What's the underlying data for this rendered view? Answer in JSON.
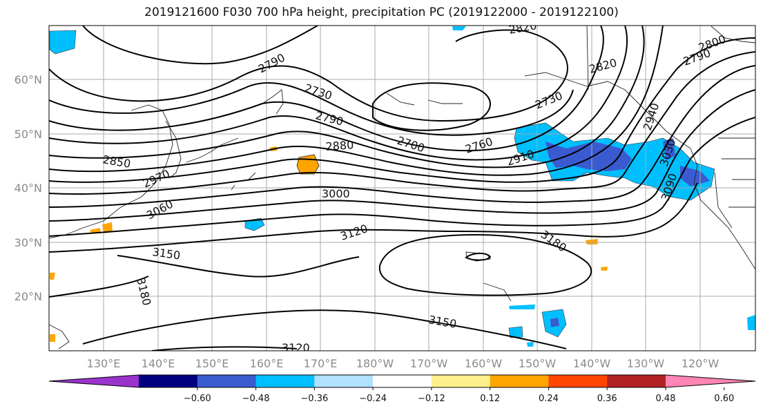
{
  "title": "2019121600 F030 700 hPa height, precipitation PC (2019122000 - 2019122100)",
  "lon_labels": [
    "130°E",
    "140°E",
    "150°E",
    "160°E",
    "170°E",
    "180°W",
    "170°W",
    "160°W",
    "150°W",
    "140°W",
    "130°W",
    "120°W"
  ],
  "lat_labels": [
    "60°N",
    "50°N",
    "40°N",
    "30°N",
    "20°N"
  ],
  "contour_labels": [
    "2820",
    "2790",
    "2730",
    "2820",
    "2730",
    "2790",
    "2700",
    "2760",
    "2910",
    "2880",
    "2850",
    "2970",
    "3000",
    "2940",
    "3030",
    "3090",
    "3060",
    "3120",
    "3180",
    "3150",
    "3180",
    "3150",
    "3120",
    "2800",
    "2790"
  ],
  "colorbar": {
    "ticks": [
      "−0.60",
      "−0.48",
      "−0.36",
      "−0.24",
      "−0.12",
      "0.12",
      "0.24",
      "0.36",
      "0.48",
      "0.60"
    ],
    "colors": [
      "#9a33cc",
      "#000080",
      "#3a5bd0",
      "#00bfff",
      "#b0e2ff",
      "#ffffff",
      "#fff08c",
      "#ffa500",
      "#ff4500",
      "#b22222",
      "#ff85b4"
    ]
  }
}
